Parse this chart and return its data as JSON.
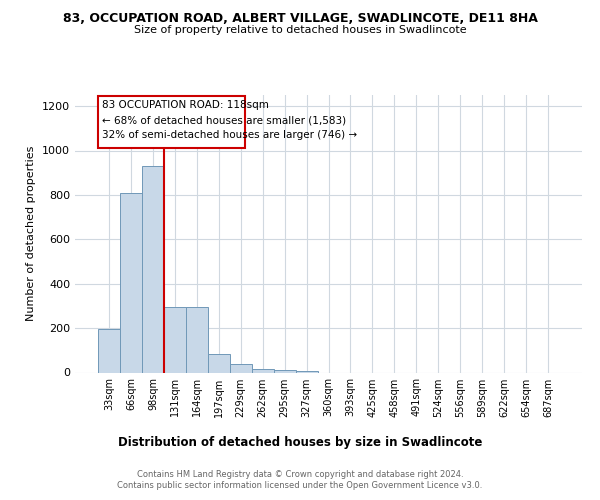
{
  "title1": "83, OCCUPATION ROAD, ALBERT VILLAGE, SWADLINCOTE, DE11 8HA",
  "title2": "Size of property relative to detached houses in Swadlincote",
  "xlabel": "Distribution of detached houses by size in Swadlincote",
  "ylabel": "Number of detached properties",
  "footer1": "Contains HM Land Registry data © Crown copyright and database right 2024.",
  "footer2": "Contains public sector information licensed under the Open Government Licence v3.0.",
  "annotation_line1": "83 OCCUPATION ROAD: 118sqm",
  "annotation_line2": "← 68% of detached houses are smaller (1,583)",
  "annotation_line3": "32% of semi-detached houses are larger (746) →",
  "bar_color": "#c8d8e8",
  "bar_edge_color": "#7098b8",
  "subject_line_color": "#cc0000",
  "annotation_box_color": "#cc0000",
  "categories": [
    "33sqm",
    "66sqm",
    "98sqm",
    "131sqm",
    "164sqm",
    "197sqm",
    "229sqm",
    "262sqm",
    "295sqm",
    "327sqm",
    "360sqm",
    "393sqm",
    "425sqm",
    "458sqm",
    "491sqm",
    "524sqm",
    "556sqm",
    "589sqm",
    "622sqm",
    "654sqm",
    "687sqm"
  ],
  "values": [
    197,
    810,
    930,
    293,
    293,
    83,
    37,
    18,
    10,
    8,
    0,
    0,
    0,
    0,
    0,
    0,
    0,
    0,
    0,
    0,
    0
  ],
  "ylim": [
    0,
    1250
  ],
  "yticks": [
    0,
    200,
    400,
    600,
    800,
    1000,
    1200
  ],
  "subject_bar_index": 2,
  "bg_color": "#ffffff",
  "grid_color": "#d0d8e0"
}
